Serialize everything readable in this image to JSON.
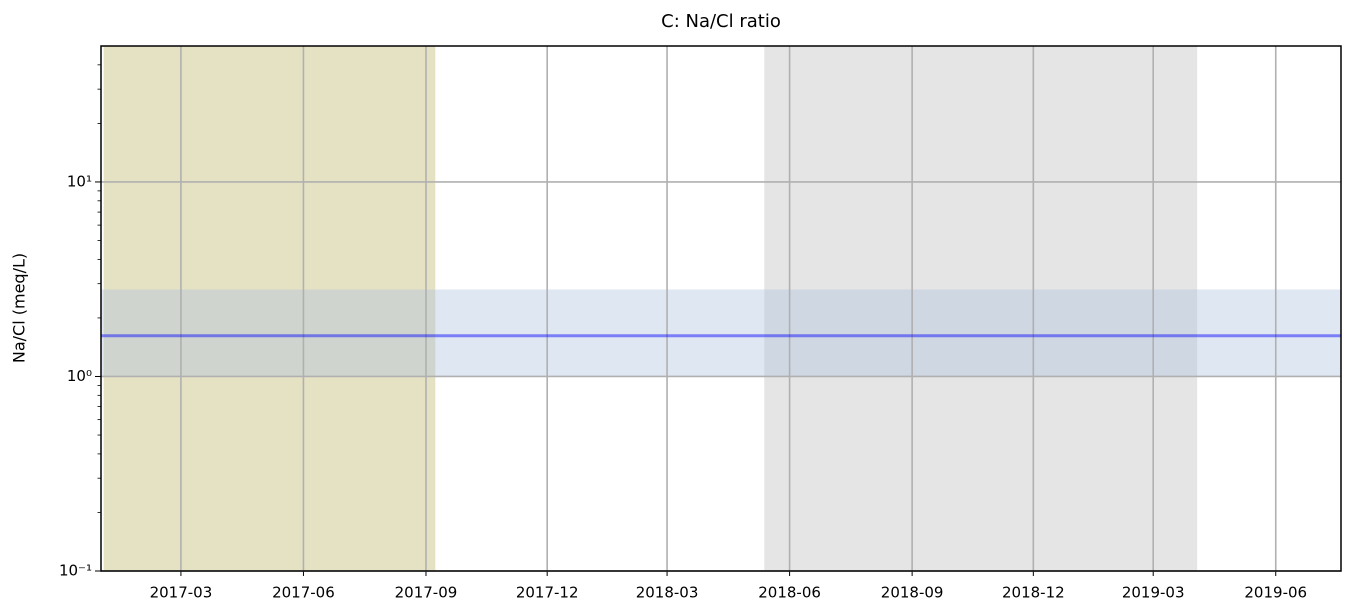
{
  "chart_data": {
    "type": "line",
    "title": "C: Na/Cl ratio",
    "y_label": "Na/Cl (meq/L)",
    "y_scale": "log",
    "xlim": [
      "2016-12-31",
      "2019-07-20"
    ],
    "ylim": [
      0.1,
      50
    ],
    "xticks": [
      {
        "value": "2017-03-01",
        "label": "2017-03"
      },
      {
        "value": "2017-06-01",
        "label": "2017-06"
      },
      {
        "value": "2017-09-01",
        "label": "2017-09"
      },
      {
        "value": "2017-12-01",
        "label": "2017-12"
      },
      {
        "value": "2018-03-01",
        "label": "2018-03"
      },
      {
        "value": "2018-06-01",
        "label": "2018-06"
      },
      {
        "value": "2018-09-01",
        "label": "2018-09"
      },
      {
        "value": "2018-12-01",
        "label": "2018-12"
      },
      {
        "value": "2019-03-01",
        "label": "2019-03"
      },
      {
        "value": "2019-06-01",
        "label": "2019-06"
      }
    ],
    "yticks": [
      {
        "value": 0.1,
        "label": "10⁻¹"
      },
      {
        "value": 1,
        "label": "10⁰"
      },
      {
        "value": 10,
        "label": "10¹"
      }
    ],
    "yminorticks": [
      0.2,
      0.3,
      0.4,
      0.5,
      0.6,
      0.7,
      0.8,
      0.9,
      2,
      3,
      4,
      5,
      6,
      7,
      8,
      9,
      20,
      30,
      40
    ],
    "grid": true,
    "spans": [
      {
        "start": "2017-01-02",
        "end": "2017-09-08",
        "color": "#bdb76b",
        "alpha": 0.4
      },
      {
        "start": "2018-05-13",
        "end": "2019-04-03",
        "color": "#bfbfbf",
        "alpha": 0.4
      }
    ],
    "band": {
      "lower": 1.0,
      "upper": 2.8,
      "color": "#b0c4de",
      "alpha": 0.4
    },
    "series": [
      {
        "x": [
          "2016-12-31",
          "2019-07-20"
        ],
        "values": [
          1.62,
          1.62
        ],
        "color": "#0000ff",
        "alpha": 0.45
      }
    ]
  }
}
